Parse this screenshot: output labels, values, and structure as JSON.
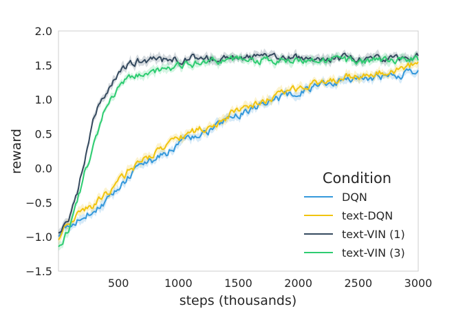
{
  "chart_data": {
    "type": "line",
    "title": "",
    "xlabel": "steps (thousands)",
    "ylabel": "reward",
    "xlim": [
      0,
      3000
    ],
    "ylim": [
      -1.5,
      2.0
    ],
    "xticks": [
      500,
      1000,
      1500,
      2000,
      2500,
      3000
    ],
    "yticks": [
      -1.5,
      -1.0,
      -0.5,
      0.0,
      0.5,
      1.0,
      1.5,
      2.0
    ],
    "grid": false,
    "legend": {
      "title": "Condition",
      "placement": "lower-right"
    },
    "series": [
      {
        "name": "DQN",
        "color": "#3498db",
        "x": [
          0,
          100,
          200,
          300,
          400,
          500,
          600,
          700,
          800,
          900,
          1000,
          1100,
          1200,
          1300,
          1400,
          1500,
          1600,
          1700,
          1800,
          1900,
          2000,
          2100,
          2200,
          2300,
          2400,
          2500,
          2600,
          2700,
          2800,
          2900,
          3000
        ],
        "y": [
          -0.95,
          -0.8,
          -0.72,
          -0.6,
          -0.48,
          -0.3,
          -0.1,
          0.05,
          0.12,
          0.22,
          0.35,
          0.42,
          0.5,
          0.58,
          0.68,
          0.78,
          0.85,
          0.92,
          1.0,
          1.05,
          1.12,
          1.15,
          1.2,
          1.25,
          1.28,
          1.3,
          1.32,
          1.33,
          1.35,
          1.38,
          1.4
        ]
      },
      {
        "name": "text-DQN",
        "color": "#f1c40f",
        "x": [
          0,
          100,
          200,
          300,
          400,
          500,
          600,
          700,
          800,
          900,
          1000,
          1100,
          1200,
          1300,
          1400,
          1500,
          1600,
          1700,
          1800,
          1900,
          2000,
          2100,
          2200,
          2300,
          2400,
          2500,
          2600,
          2700,
          2800,
          2900,
          3000
        ],
        "y": [
          -1.0,
          -0.75,
          -0.65,
          -0.52,
          -0.38,
          -0.2,
          -0.02,
          0.1,
          0.2,
          0.32,
          0.45,
          0.52,
          0.58,
          0.65,
          0.75,
          0.85,
          0.9,
          0.98,
          1.05,
          1.12,
          1.18,
          1.22,
          1.26,
          1.3,
          1.33,
          1.36,
          1.38,
          1.4,
          1.42,
          1.46,
          1.55
        ]
      },
      {
        "name": "text-VIN (1)",
        "color": "#34495e",
        "x": [
          0,
          50,
          100,
          150,
          200,
          250,
          300,
          350,
          400,
          450,
          500,
          550,
          600,
          650,
          700,
          800,
          900,
          1000,
          1100,
          1200,
          1300,
          1400,
          1500,
          1600,
          1800,
          2000,
          2200,
          2400,
          2600,
          2800,
          3000
        ],
        "y": [
          -0.9,
          -0.85,
          -0.7,
          -0.4,
          0.0,
          0.35,
          0.75,
          0.95,
          1.1,
          1.25,
          1.38,
          1.48,
          1.52,
          1.55,
          1.57,
          1.57,
          1.58,
          1.58,
          1.6,
          1.6,
          1.6,
          1.61,
          1.62,
          1.61,
          1.6,
          1.6,
          1.6,
          1.6,
          1.6,
          1.6,
          1.62
        ]
      },
      {
        "name": "text-VIN (3)",
        "color": "#2ecc71",
        "x": [
          0,
          50,
          100,
          150,
          200,
          250,
          300,
          350,
          400,
          450,
          500,
          550,
          600,
          650,
          700,
          800,
          900,
          1000,
          1100,
          1200,
          1300,
          1400,
          1500,
          1600,
          1800,
          2000,
          2200,
          2400,
          2600,
          2800,
          3000
        ],
        "y": [
          -1.1,
          -1.0,
          -0.85,
          -0.5,
          -0.2,
          0.1,
          0.4,
          0.68,
          0.9,
          1.05,
          1.18,
          1.25,
          1.3,
          1.35,
          1.38,
          1.42,
          1.45,
          1.48,
          1.52,
          1.56,
          1.57,
          1.58,
          1.58,
          1.58,
          1.58,
          1.57,
          1.56,
          1.56,
          1.56,
          1.57,
          1.58
        ]
      }
    ]
  }
}
